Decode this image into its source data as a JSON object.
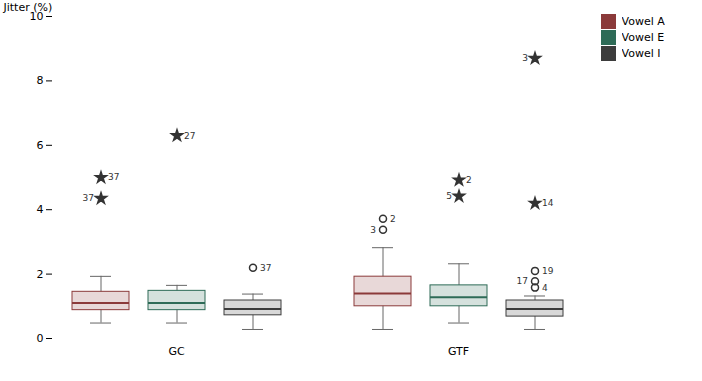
{
  "chart_data": {
    "type": "box",
    "ylabel": "Jitter (%)",
    "ylim": [
      0,
      10
    ],
    "yticks": [
      0,
      2,
      4,
      6,
      8,
      10
    ],
    "grid": false,
    "legend": "right",
    "categories": [
      "GC",
      "GTF"
    ],
    "series": [
      {
        "name": "Vowel A",
        "color": "#8b3a3a",
        "values": [
          {
            "q1": 0.88,
            "median": 1.1,
            "q3": 1.45,
            "whisker_low": 0.48,
            "whisker_high": 1.93,
            "outliers": [
              {
                "value": 5.0,
                "label": "37",
                "marker": "star"
              },
              {
                "value": 4.35,
                "label": "37",
                "marker": "star"
              }
            ]
          },
          {
            "q1": 1.0,
            "median": 1.4,
            "q3": 1.92,
            "whisker_low": 0.28,
            "whisker_high": 2.82,
            "outliers": [
              {
                "value": 3.72,
                "label": "2",
                "marker": "circle"
              },
              {
                "value": 3.38,
                "label": "3",
                "marker": "circle"
              }
            ]
          }
        ]
      },
      {
        "name": "Vowel E",
        "color": "#2e6b57",
        "values": [
          {
            "q1": 0.88,
            "median": 1.1,
            "q3": 1.48,
            "whisker_low": 0.48,
            "whisker_high": 1.65,
            "outliers": [
              {
                "value": 6.3,
                "label": "27",
                "marker": "star"
              }
            ]
          },
          {
            "q1": 1.0,
            "median": 1.28,
            "q3": 1.65,
            "whisker_low": 0.48,
            "whisker_high": 2.32,
            "outliers": [
              {
                "value": 4.92,
                "label": "2",
                "marker": "star"
              },
              {
                "value": 4.42,
                "label": "5",
                "marker": "star"
              }
            ]
          }
        ]
      },
      {
        "name": "Vowel I",
        "color": "#3c3c3c",
        "values": [
          {
            "q1": 0.72,
            "median": 0.92,
            "q3": 1.18,
            "whisker_low": 0.28,
            "whisker_high": 1.38,
            "outliers": [
              {
                "value": 2.2,
                "label": "37",
                "marker": "circle"
              }
            ]
          },
          {
            "q1": 0.68,
            "median": 0.92,
            "q3": 1.18,
            "whisker_low": 0.28,
            "whisker_high": 1.32,
            "outliers": [
              {
                "value": 4.2,
                "label": "14",
                "marker": "star"
              },
              {
                "value": 8.7,
                "label": "3",
                "marker": "star"
              },
              {
                "value": 2.1,
                "label": "19",
                "marker": "circle"
              },
              {
                "value": 1.78,
                "label": "17",
                "marker": "circle"
              },
              {
                "value": 1.58,
                "label": "4",
                "marker": "circle"
              }
            ]
          }
        ]
      }
    ]
  }
}
